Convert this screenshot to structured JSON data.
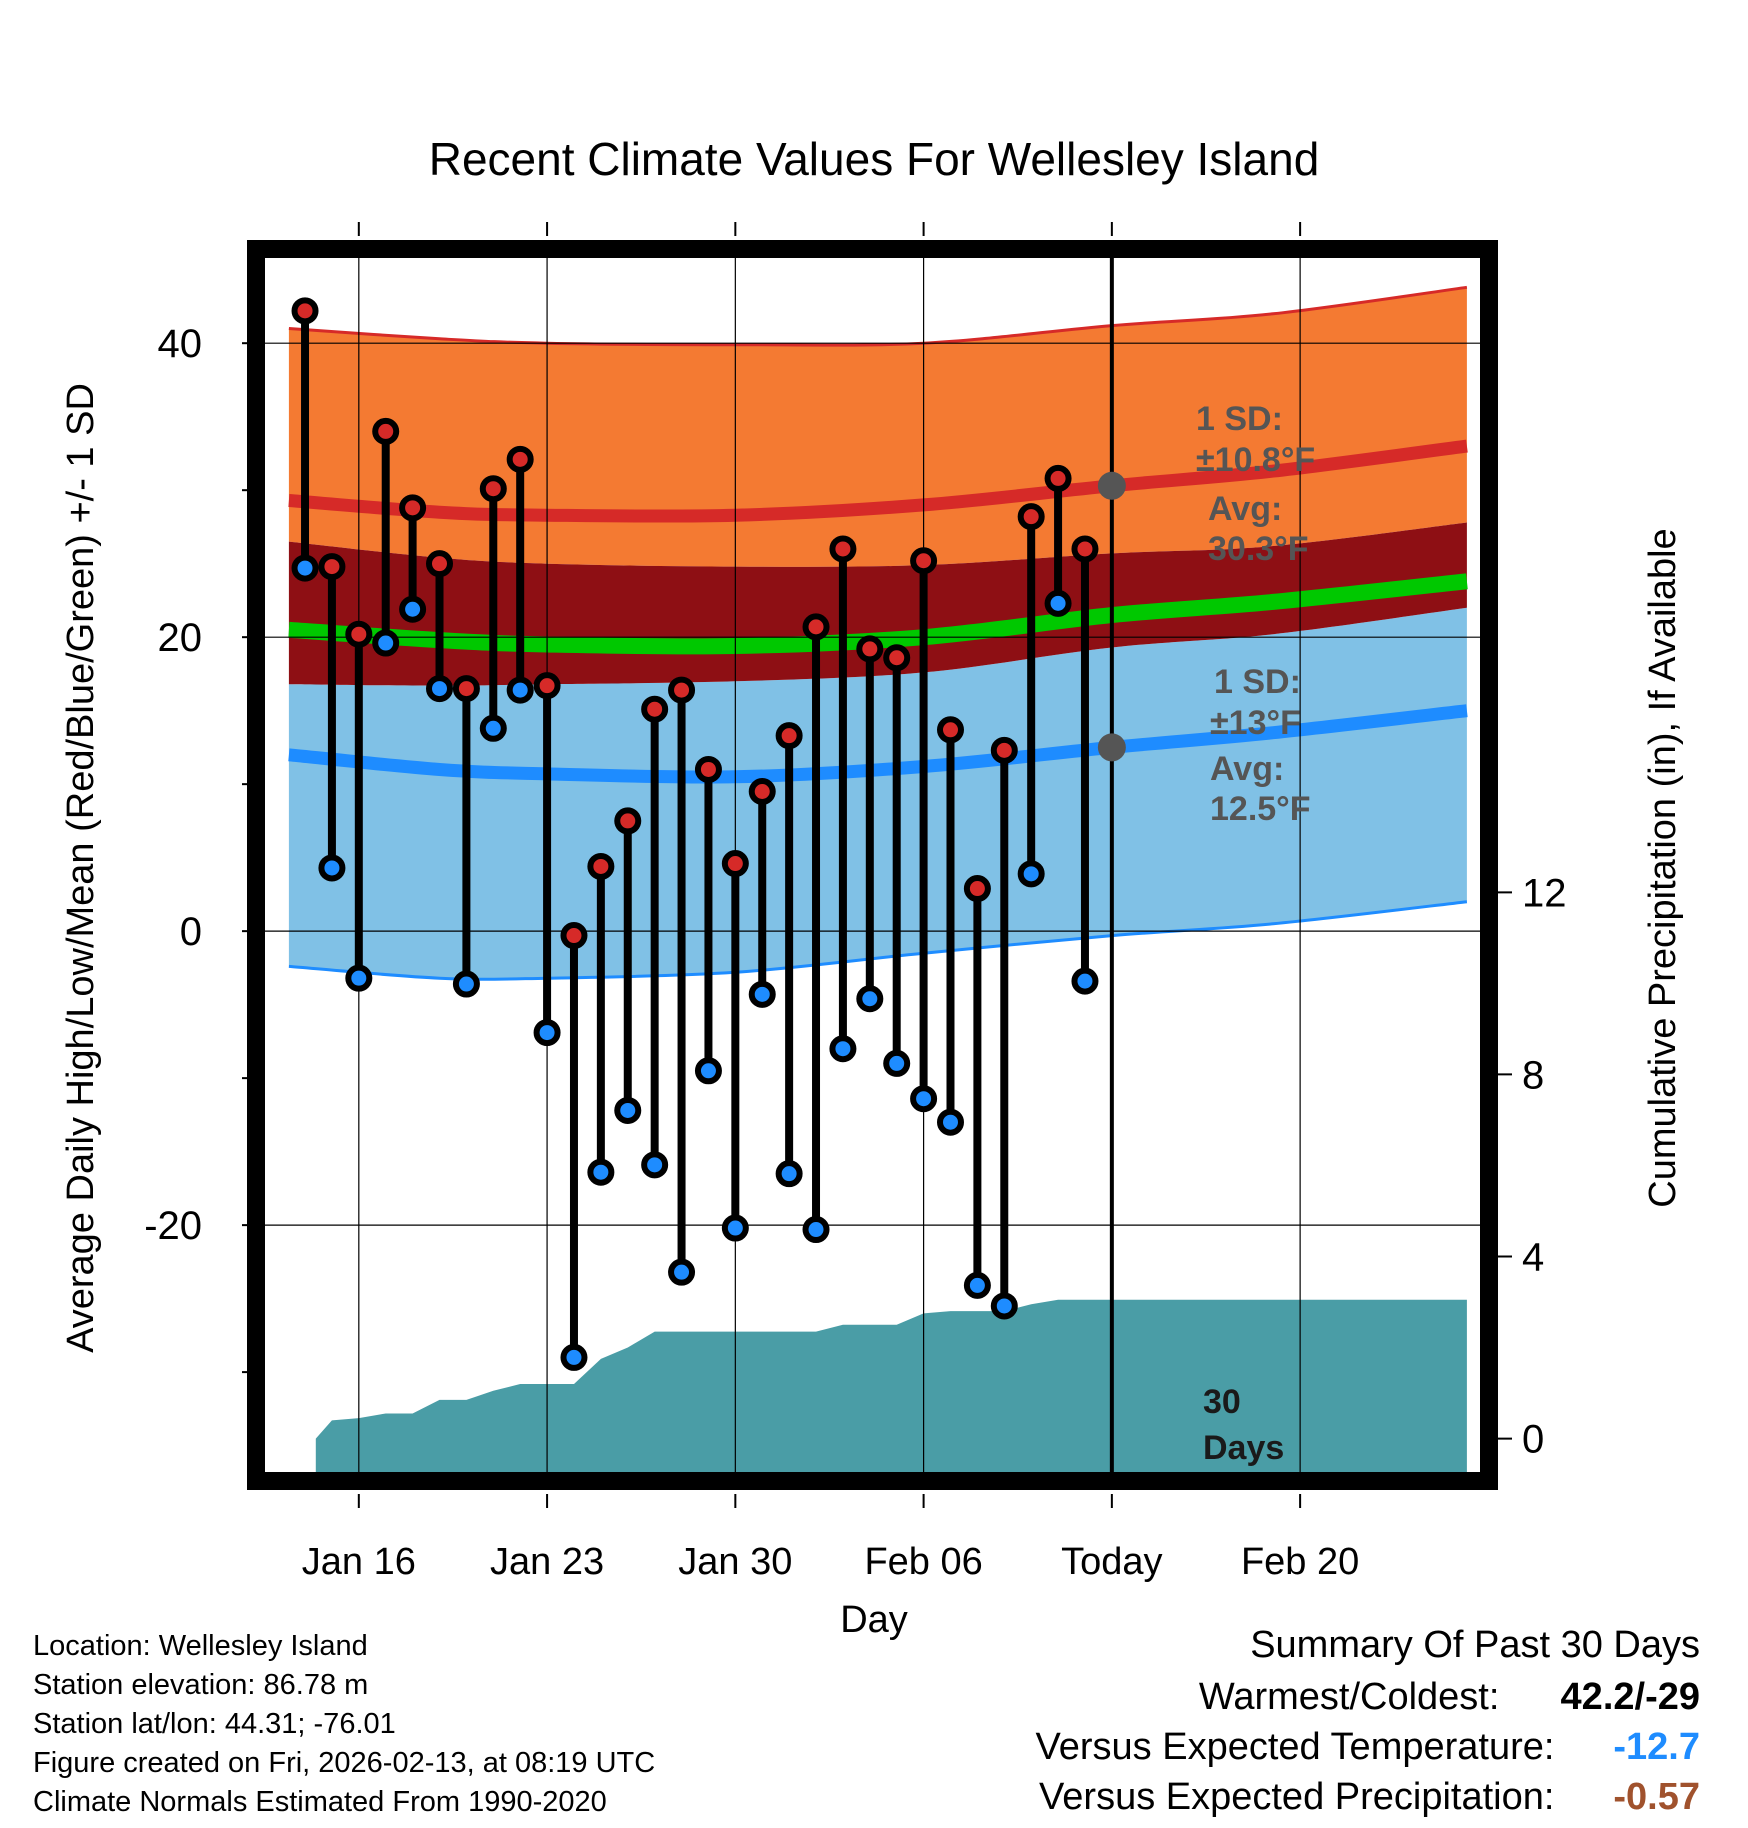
{
  "colors": {
    "high_band": "#f47a32",
    "high_mean": "#d62a28",
    "overlap_band": "#8e0f14",
    "mean_line": "#00c800",
    "low_band": "#80c1e6",
    "low_mean": "#1e8cff",
    "precip": "#4a9da6",
    "high_point": "#d62a28",
    "low_point": "#1e8cff",
    "annotation": "#555555",
    "temp_blue": "#1e8cff",
    "precip_brown": "#a0522d"
  },
  "chart_data": {
    "type": "line",
    "title": "Recent Climate Values For Wellesley Island",
    "xlabel": "Day",
    "ylabel": "Average Daily High/Low/Mean (Red/Blue/Green) +/- 1 SD",
    "y2label": "Cumulative Precipitation (in), If Available",
    "x_range": [
      -3.6,
      41.8
    ],
    "ylim": [
      -37,
      46
    ],
    "y2lim": [
      -0.8,
      26
    ],
    "yticks": [
      -20,
      0,
      20,
      40
    ],
    "y2ticks": [
      0,
      4,
      8,
      12
    ],
    "xticks": [
      {
        "day": 0,
        "label": "Jan 16"
      },
      {
        "day": 7,
        "label": "Jan 23"
      },
      {
        "day": 14,
        "label": "Jan 30"
      },
      {
        "day": 21,
        "label": "Feb 06"
      },
      {
        "day": 28,
        "label": "Today"
      },
      {
        "day": 35,
        "label": "Feb 20"
      }
    ],
    "today_day": 28,
    "days": [
      -2,
      -1,
      0,
      1,
      2,
      3,
      4,
      5,
      6,
      7,
      8,
      9,
      10,
      11,
      12,
      13,
      14,
      15,
      16,
      17,
      18,
      19,
      20,
      21,
      22,
      23,
      24,
      25,
      26,
      27
    ],
    "highs": [
      42.2,
      24.8,
      20.2,
      34.0,
      28.8,
      25.0,
      16.5,
      30.1,
      32.1,
      16.7,
      -0.3,
      4.4,
      7.5,
      15.1,
      16.4,
      11.0,
      4.6,
      9.5,
      13.3,
      20.7,
      26.0,
      19.2,
      18.6,
      25.2,
      13.7,
      2.9,
      12.3,
      28.2,
      30.8,
      26.0
    ],
    "lows": [
      24.7,
      4.3,
      -3.2,
      19.6,
      21.9,
      16.5,
      -3.6,
      13.8,
      16.4,
      -6.9,
      -29.0,
      -16.4,
      -12.2,
      -15.9,
      -23.2,
      -9.5,
      -20.2,
      -4.3,
      -16.5,
      -20.3,
      -8.0,
      -4.6,
      -9.0,
      -11.4,
      -13.0,
      -24.1,
      -25.5,
      3.9,
      22.3,
      -3.4
    ],
    "series": [
      {
        "name": "Normal High",
        "x": [
          -2.6,
          3,
          7,
          14,
          21,
          28,
          34,
          41.2
        ],
        "values": [
          29.3,
          28.5,
          28.3,
          28.3,
          29.0,
          30.3,
          31.3,
          33.0
        ]
      },
      {
        "name": "Normal Low",
        "x": [
          -2.6,
          3,
          7,
          14,
          21,
          28,
          34,
          41.2
        ],
        "values": [
          12.0,
          11.0,
          10.7,
          10.5,
          11.2,
          12.5,
          13.5,
          15.0
        ]
      },
      {
        "name": "Normal Mean",
        "x": [
          -2.6,
          3,
          7,
          14,
          21,
          28,
          34,
          41.2
        ],
        "values": [
          20.5,
          19.8,
          19.5,
          19.4,
          20.0,
          21.5,
          22.4,
          23.8
        ]
      },
      {
        "name": "High +1 SD",
        "x": [
          -2.6,
          3,
          7,
          14,
          21,
          28,
          34,
          41.2
        ],
        "values": [
          41.0,
          40.3,
          40.0,
          39.9,
          40.0,
          41.2,
          42.0,
          43.8
        ]
      },
      {
        "name": "High -1 SD",
        "x": [
          -2.6,
          3,
          7,
          14,
          21,
          28,
          34,
          41.2
        ],
        "values": [
          26.5,
          25.4,
          25.0,
          24.8,
          24.9,
          25.7,
          26.2,
          27.8
        ]
      },
      {
        "name": "Low +1 SD",
        "x": [
          -2.6,
          3,
          7,
          14,
          21,
          28,
          34,
          41.2
        ],
        "values": [
          16.8,
          16.7,
          16.8,
          17.0,
          17.6,
          19.3,
          20.2,
          22.0
        ]
      },
      {
        "name": "Low -1 SD",
        "x": [
          -2.6,
          3,
          7,
          14,
          21,
          28,
          34,
          41.2
        ],
        "values": [
          -2.4,
          -3.2,
          -3.2,
          -2.8,
          -1.5,
          -0.3,
          0.5,
          2.0
        ]
      },
      {
        "name": "Cumulative Precipitation",
        "x": [
          -1.6,
          -1,
          0,
          1,
          2,
          3,
          4,
          5,
          6,
          7,
          8,
          9,
          10,
          11,
          12,
          13,
          14,
          15,
          16,
          17,
          18,
          19,
          20,
          21,
          22,
          23,
          24,
          25,
          26,
          27,
          28,
          41.2
        ],
        "values": [
          0,
          0.4,
          0.45,
          0.55,
          0.55,
          0.85,
          0.85,
          1.05,
          1.2,
          1.2,
          1.2,
          1.75,
          2.0,
          2.35,
          2.35,
          2.35,
          2.35,
          2.35,
          2.35,
          2.35,
          2.5,
          2.5,
          2.5,
          2.75,
          2.8,
          2.8,
          2.8,
          2.95,
          3.05,
          3.05,
          3.05,
          3.05
        ]
      }
    ],
    "annotations": {
      "high_sd_l1": "1 SD:",
      "high_sd_l2": "±10.8°F",
      "high_avg_l1": "Avg:",
      "high_avg_l2": "30.3°F",
      "low_sd_l1": "1 SD:",
      "low_sd_l2": "±13°F",
      "low_avg_l1": "Avg:",
      "low_avg_l2": "12.5°F",
      "days_l1": "30",
      "days_l2": "Days",
      "high_avg_value": 30.3,
      "low_avg_value": 12.5
    }
  },
  "info": {
    "location": "Location: Wellesley Island",
    "elevation": "Station elevation: 86.78 m",
    "latlon": "Station lat/lon: 44.31; -76.01",
    "created": "Figure created on Fri, 2026-02-13, at 08:19 UTC",
    "normals": "Climate Normals Estimated From 1990-2020"
  },
  "summary": {
    "title": "Summary Of Past 30 Days",
    "warm_cold_label": "Warmest/Coldest:",
    "warm_cold_value": "42.2/-29",
    "vs_temp_label": "Versus Expected Temperature:",
    "vs_temp_value": "-12.7",
    "vs_precip_label": "Versus Expected Precipitation:",
    "vs_precip_value": "-0.57"
  }
}
